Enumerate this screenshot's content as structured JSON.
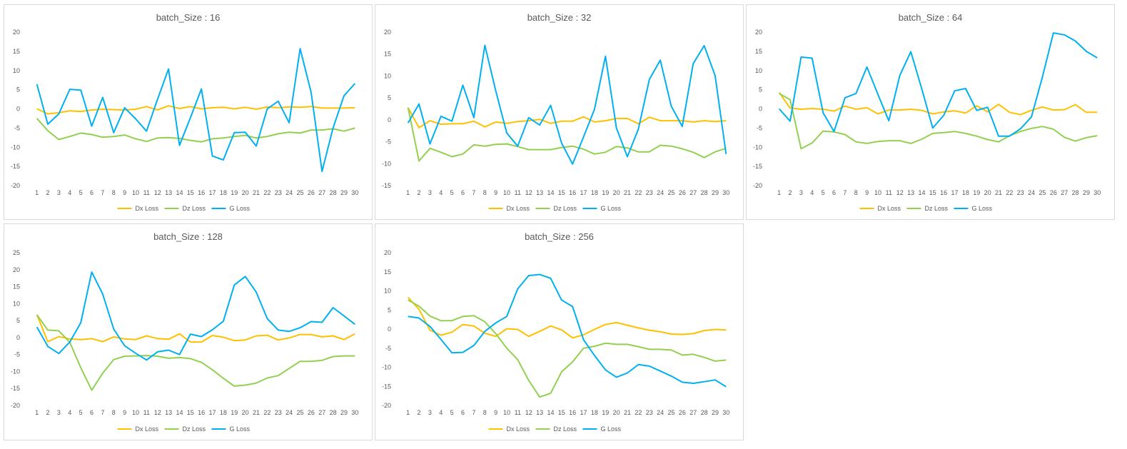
{
  "colors": {
    "Dx Loss": "#FFC000",
    "Dz Loss": "#92D050",
    "G Loss": "#00B0F0"
  },
  "chart_data": [
    {
      "type": "line",
      "title": "batch_Size : 16",
      "x": [
        1,
        2,
        3,
        4,
        5,
        6,
        7,
        8,
        9,
        10,
        11,
        12,
        13,
        14,
        15,
        16,
        17,
        18,
        19,
        20,
        21,
        22,
        23,
        24,
        25,
        26,
        27,
        28,
        29,
        30
      ],
      "ylim": [
        -20,
        20
      ],
      "yticks": [
        -20,
        -15,
        -10,
        -5,
        0,
        5,
        10,
        15,
        20
      ],
      "grid": false,
      "legend": "bottom",
      "series": [
        {
          "name": "Dx Loss",
          "values": [
            0,
            -1.3,
            -1,
            -0.5,
            -0.7,
            -0.3,
            -0.1,
            -0.2,
            -0.3,
            -0.1,
            0.6,
            -0.3,
            0.8,
            0.1,
            0.6,
            0,
            0.3,
            0.4,
            0,
            0.4,
            -0.1,
            0.5,
            0.3,
            0.5,
            0.4,
            0.6,
            0.2,
            0.2,
            0.2,
            0.3
          ]
        },
        {
          "name": "Dz Loss",
          "values": [
            -2.5,
            -5.7,
            -8,
            -7.2,
            -6.3,
            -6.7,
            -7.4,
            -7.2,
            -6.8,
            -7.8,
            -8.5,
            -7.6,
            -7.5,
            -7.7,
            -8.2,
            -8.6,
            -7.8,
            -7.6,
            -7.2,
            -6.9,
            -7.6,
            -7.2,
            -6.5,
            -6.1,
            -6.3,
            -5.5,
            -5.5,
            -5.2,
            -5.8,
            -5
          ]
        },
        {
          "name": "G Loss",
          "values": [
            6.4,
            -4,
            -1.3,
            5.1,
            4.9,
            -4.5,
            3,
            -6.2,
            0.3,
            -2.6,
            -5.8,
            2.5,
            10.4,
            -9.5,
            -2.3,
            5.2,
            -12.3,
            -13.3,
            -6.2,
            -6.1,
            -9.7,
            0,
            2,
            -3.6,
            15.7,
            4.3,
            -16.3,
            -5,
            3.4,
            6.6
          ]
        }
      ]
    },
    {
      "type": "line",
      "title": "batch_Size : 32",
      "x": [
        1,
        2,
        3,
        4,
        5,
        6,
        7,
        8,
        9,
        10,
        11,
        12,
        13,
        14,
        15,
        16,
        17,
        18,
        19,
        20,
        21,
        22,
        23,
        24,
        25,
        26,
        27,
        28,
        29,
        30
      ],
      "ylim": [
        -15,
        20
      ],
      "yticks": [
        -15,
        -10,
        -5,
        0,
        5,
        10,
        15,
        20
      ],
      "grid": false,
      "legend": "bottom",
      "series": [
        {
          "name": "Dx Loss",
          "values": [
            2.8,
            -1.8,
            -0.2,
            -1,
            -0.9,
            -0.9,
            -0.3,
            -1.6,
            -0.5,
            -0.8,
            -0.4,
            -0.2,
            0.1,
            -0.8,
            -0.3,
            -0.3,
            0.7,
            -0.5,
            -0.2,
            0.3,
            0.3,
            -0.9,
            0.6,
            -0.2,
            -0.2,
            -0.2,
            -0.5,
            -0.2,
            -0.4,
            -0.2
          ]
        },
        {
          "name": "Dz Loss",
          "values": [
            2.8,
            -9.4,
            -6.5,
            -7.4,
            -8.4,
            -7.8,
            -5.7,
            -6,
            -5.6,
            -5.5,
            -6.1,
            -6.8,
            -6.8,
            -6.8,
            -6.3,
            -6,
            -6.7,
            -7.8,
            -7.4,
            -6.1,
            -6.4,
            -7.3,
            -7.3,
            -5.8,
            -6,
            -6.6,
            -7.4,
            -8.6,
            -7.3,
            -6.5
          ]
        },
        {
          "name": "G Loss",
          "values": [
            -0.7,
            3.6,
            -5.5,
            0.8,
            -0.3,
            7.9,
            0.5,
            17,
            6.6,
            -3,
            -6,
            0.5,
            -1.2,
            3.3,
            -5.3,
            -10.1,
            -3.9,
            2.4,
            14.5,
            -1.9,
            -8.4,
            -2.1,
            9.2,
            13.6,
            3.1,
            -1.5,
            12.8,
            16.9,
            10.1,
            -7.8
          ]
        }
      ]
    },
    {
      "type": "line",
      "title": "batch_Size : 64",
      "x": [
        1,
        2,
        3,
        4,
        5,
        6,
        7,
        8,
        9,
        10,
        11,
        12,
        13,
        14,
        15,
        16,
        17,
        18,
        19,
        20,
        21,
        22,
        23,
        24,
        25,
        26,
        27,
        28,
        29,
        30
      ],
      "ylim": [
        -20,
        20
      ],
      "yticks": [
        -20,
        -15,
        -10,
        -5,
        0,
        5,
        10,
        15,
        20
      ],
      "grid": false,
      "legend": "bottom",
      "series": [
        {
          "name": "Dx Loss",
          "values": [
            4.3,
            0.2,
            -0.1,
            0.1,
            -0.1,
            -0.6,
            0.7,
            -0.1,
            0.3,
            -1.3,
            -0.3,
            -0.3,
            -0.1,
            -0.4,
            -1.3,
            -0.8,
            -0.5,
            -1.1,
            0.8,
            -0.8,
            1.2,
            -0.9,
            -1.5,
            -0.4,
            0.5,
            -0.3,
            -0.2,
            1.1,
            -0.9,
            -0.9
          ]
        },
        {
          "name": "Dz Loss",
          "values": [
            4,
            2.4,
            -10.4,
            -8.9,
            -5.8,
            -6,
            -6.7,
            -8.6,
            -9,
            -8.5,
            -8.3,
            -8.3,
            -9,
            -7.9,
            -6.4,
            -6.2,
            -5.9,
            -6.4,
            -7.1,
            -8,
            -8.6,
            -7,
            -5.9,
            -5.1,
            -4.6,
            -5.3,
            -7.4,
            -8.4,
            -7.5,
            -7
          ]
        },
        {
          "name": "G Loss",
          "values": [
            0,
            -3.2,
            13.5,
            13.2,
            -1,
            -5.9,
            2.9,
            4,
            10.9,
            3.8,
            -3.1,
            8.7,
            14.9,
            5.2,
            -5,
            -1.7,
            4.7,
            5.3,
            -0.4,
            0.4,
            -7.1,
            -7.1,
            -5.2,
            -2.1,
            8.3,
            19.8,
            19.3,
            17.7,
            15,
            13.3
          ]
        }
      ]
    },
    {
      "type": "line",
      "title": "batch_Size : 128",
      "x": [
        1,
        2,
        3,
        4,
        5,
        6,
        7,
        8,
        9,
        10,
        11,
        12,
        13,
        14,
        15,
        16,
        17,
        18,
        19,
        20,
        21,
        22,
        23,
        24,
        25,
        26,
        27,
        28,
        29,
        30
      ],
      "ylim": [
        -20,
        25
      ],
      "yticks": [
        -20,
        -15,
        -10,
        -5,
        0,
        5,
        10,
        15,
        20,
        25
      ],
      "grid": false,
      "legend": "bottom",
      "series": [
        {
          "name": "Dx Loss",
          "values": [
            6.7,
            -1.2,
            0.3,
            -0.4,
            -0.6,
            -0.3,
            -1.2,
            0.2,
            -0.4,
            -0.6,
            0.5,
            -0.3,
            -0.5,
            1.1,
            -1.3,
            -1.3,
            0.6,
            0.1,
            -0.9,
            -0.7,
            0.5,
            0.7,
            -0.7,
            -0.1,
            0.9,
            0.9,
            0.2,
            0.5,
            -0.6,
            1.1
          ]
        },
        {
          "name": "Dz Loss",
          "values": [
            6.7,
            2.2,
            2,
            -1.4,
            -8.9,
            -15.5,
            -10.5,
            -6.5,
            -5.5,
            -5.4,
            -5.3,
            -5.5,
            -6.1,
            -5.9,
            -6.2,
            -7.3,
            -9.5,
            -12,
            -14.3,
            -14,
            -13.4,
            -11.9,
            -11.2,
            -9.1,
            -7,
            -7,
            -6.7,
            -5.6,
            -5.4,
            -5.4
          ]
        },
        {
          "name": "G Loss",
          "values": [
            3.1,
            -2.6,
            -4.7,
            -1.3,
            4.4,
            19.3,
            12.8,
            2.5,
            -2.4,
            -4.6,
            -6.6,
            -4.2,
            -3.7,
            -5,
            1,
            0.3,
            2.3,
            4.8,
            15.5,
            18,
            13.4,
            5.6,
            2.2,
            1.8,
            2.9,
            4.7,
            4.5,
            8.8,
            6.4,
            3.9
          ]
        }
      ]
    },
    {
      "type": "line",
      "title": "batch_Size : 256",
      "x": [
        1,
        2,
        3,
        4,
        5,
        6,
        7,
        8,
        9,
        10,
        11,
        12,
        13,
        14,
        15,
        16,
        17,
        18,
        19,
        20,
        21,
        22,
        23,
        24,
        25,
        26,
        27,
        28,
        29,
        30
      ],
      "ylim": [
        -20,
        20
      ],
      "yticks": [
        -20,
        -15,
        -10,
        -5,
        0,
        5,
        10,
        15,
        20
      ],
      "grid": false,
      "legend": "bottom",
      "series": [
        {
          "name": "Dx Loss",
          "values": [
            8.3,
            5.2,
            -0.3,
            -1.6,
            -0.8,
            1.2,
            0.8,
            -1.1,
            -1.9,
            0.1,
            -0.1,
            -1.9,
            -0.6,
            0.8,
            -0.2,
            -2.3,
            -1.5,
            -0.1,
            1.2,
            1.7,
            1,
            0.3,
            -0.3,
            -0.7,
            -1.3,
            -1.4,
            -1.2,
            -0.4,
            -0.1,
            -0.2
          ]
        },
        {
          "name": "Dz Loss",
          "values": [
            7.6,
            6,
            3.4,
            2.2,
            2.2,
            3.3,
            3.5,
            1.9,
            -1.2,
            -5,
            -8,
            -13.4,
            -17.8,
            -16.8,
            -11.2,
            -8.6,
            -5,
            -4.5,
            -3.7,
            -4,
            -4,
            -4.6,
            -5.3,
            -5.3,
            -5.5,
            -6.8,
            -6.6,
            -7.4,
            -8.4,
            -8.1
          ]
        },
        {
          "name": "G Loss",
          "values": [
            3.3,
            2.9,
            0.7,
            -2.7,
            -6.2,
            -6.1,
            -4.3,
            -0.6,
            1.6,
            3.3,
            10.5,
            14,
            14.3,
            13.3,
            7.6,
            5.9,
            -2.8,
            -6.9,
            -10.7,
            -12.6,
            -11.5,
            -9.3,
            -9.7,
            -11,
            -12.3,
            -13.9,
            -14.2,
            -13.8,
            -13.3,
            -15.1
          ]
        }
      ]
    }
  ]
}
